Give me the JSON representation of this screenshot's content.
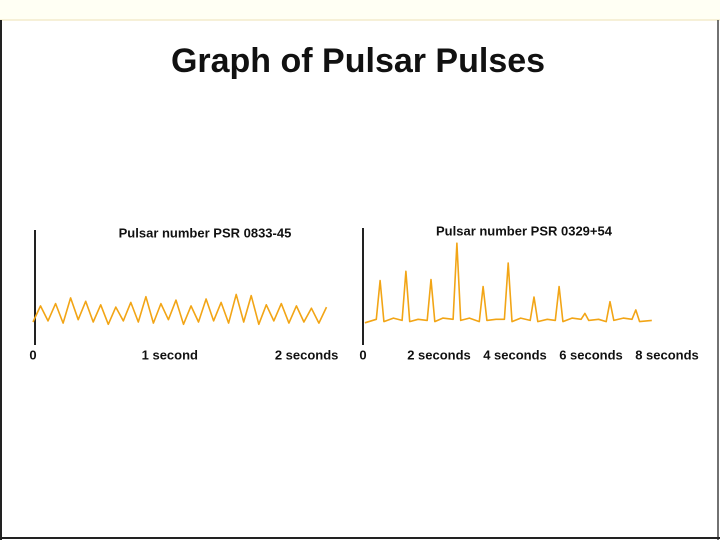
{
  "title": "Graph of Pulsar Pulses",
  "chart_data": [
    {
      "type": "line",
      "title": "Pulsar number PSR 0833-45",
      "x": [
        0,
        0.055,
        0.11,
        0.165,
        0.22,
        0.275,
        0.33,
        0.385,
        0.44,
        0.495,
        0.55,
        0.605,
        0.66,
        0.715,
        0.77,
        0.825,
        0.88,
        0.935,
        0.99,
        1.045,
        1.1,
        1.155,
        1.21,
        1.265,
        1.32,
        1.375,
        1.43,
        1.485,
        1.54,
        1.595,
        1.65,
        1.705,
        1.76,
        1.815,
        1.87,
        1.925,
        1.98,
        2.035,
        2.09,
        2.145
      ],
      "series": [
        {
          "color": "#f2a516",
          "values": [
            2.0,
            3.4,
            2.1,
            3.6,
            1.9,
            4.1,
            2.2,
            3.8,
            2.0,
            3.5,
            1.8,
            3.3,
            2.1,
            3.7,
            2.0,
            4.2,
            1.9,
            3.6,
            2.2,
            3.9,
            1.8,
            3.4,
            2.0,
            4.0,
            2.1,
            3.7,
            1.9,
            4.4,
            2.0,
            4.3,
            1.8,
            3.5,
            2.1,
            3.6,
            1.9,
            3.4,
            2.0,
            3.2,
            1.9,
            3.3
          ]
        }
      ],
      "xlim": [
        0,
        2.2
      ],
      "ylim": [
        0,
        10
      ],
      "xticks": [
        0,
        {
          "value": 1,
          "label": "1 second"
        },
        {
          "value": 2,
          "label": "2 seconds"
        }
      ]
    },
    {
      "type": "line",
      "title": "Pulsar number PSR 0329+54",
      "x": [
        0.05,
        0.35,
        0.45,
        0.55,
        0.8,
        1.03,
        1.13,
        1.23,
        1.45,
        1.69,
        1.79,
        1.89,
        2.1,
        2.37,
        2.47,
        2.57,
        2.8,
        3.06,
        3.16,
        3.26,
        3.5,
        3.72,
        3.82,
        3.92,
        4.15,
        4.4,
        4.5,
        4.6,
        4.85,
        5.06,
        5.16,
        5.26,
        5.5,
        5.74,
        5.84,
        5.94,
        6.2,
        6.4,
        6.5,
        6.6,
        6.85,
        7.08,
        7.18,
        7.28,
        7.6
      ],
      "series": [
        {
          "color": "#f2a516",
          "values": [
            1.9,
            2.2,
            5.5,
            2.0,
            2.3,
            2.1,
            6.3,
            2.0,
            2.2,
            2.1,
            5.6,
            2.0,
            2.3,
            2.2,
            8.7,
            2.1,
            2.3,
            2.0,
            5.0,
            2.1,
            2.2,
            2.2,
            7.0,
            2.0,
            2.3,
            2.1,
            4.1,
            2.0,
            2.2,
            2.1,
            5.0,
            2.0,
            2.3,
            2.2,
            2.7,
            2.1,
            2.2,
            2.0,
            3.7,
            2.1,
            2.3,
            2.2,
            3.0,
            2.0,
            2.1
          ]
        }
      ],
      "xlim": [
        0,
        8
      ],
      "ylim": [
        0,
        10
      ],
      "xticks": [
        0,
        {
          "value": 2,
          "label": "2 seconds"
        },
        {
          "value": 4,
          "label": "4 seconds"
        },
        {
          "value": 6,
          "label": "6 seconds"
        },
        {
          "value": 8,
          "label": "8 seconds"
        }
      ]
    }
  ]
}
